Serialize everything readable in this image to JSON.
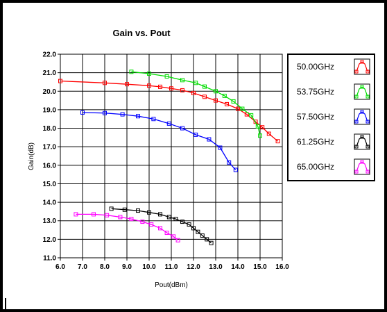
{
  "chart_data": {
    "type": "line",
    "title": "Gain vs. Pout",
    "xlabel": "Pout(dBm)",
    "ylabel": "Gain(dB)",
    "xlim": [
      6.0,
      16.0
    ],
    "ylim": [
      11.0,
      22.0
    ],
    "xticks": [
      "6.0",
      "7.0",
      "8.0",
      "9.0",
      "10.0",
      "11.0",
      "12.0",
      "13.0",
      "14.0",
      "15.0",
      "16.0"
    ],
    "yticks": [
      "11.0",
      "12.0",
      "13.0",
      "14.0",
      "15.0",
      "16.0",
      "17.0",
      "18.0",
      "19.0",
      "20.0",
      "21.0",
      "22.0"
    ],
    "grid": true,
    "legend_position": "right",
    "series": [
      {
        "name": "50.00GHz",
        "color": "#ff0000",
        "x": [
          6.0,
          8.0,
          9.0,
          10.0,
          10.5,
          11.0,
          11.5,
          12.0,
          12.5,
          13.0,
          13.5,
          14.0,
          14.4,
          14.8,
          15.1,
          15.4,
          15.8
        ],
        "y": [
          20.55,
          20.45,
          20.38,
          20.3,
          20.24,
          20.15,
          20.05,
          19.9,
          19.7,
          19.5,
          19.3,
          19.05,
          18.75,
          18.35,
          18.05,
          17.7,
          17.3
        ]
      },
      {
        "name": "53.75GHz",
        "color": "#00dd00",
        "x": [
          9.2,
          10.0,
          10.8,
          11.5,
          12.1,
          12.5,
          13.0,
          13.4,
          13.8,
          14.2,
          14.6,
          14.9,
          15.0
        ],
        "y": [
          21.05,
          20.95,
          20.8,
          20.6,
          20.45,
          20.25,
          20.0,
          19.75,
          19.45,
          19.05,
          18.7,
          18.1,
          17.6
        ]
      },
      {
        "name": "57.50GHz",
        "color": "#0000ff",
        "x": [
          7.0,
          8.0,
          8.8,
          9.5,
          10.2,
          10.9,
          11.5,
          12.1,
          12.7,
          13.2,
          13.6,
          13.9
        ],
        "y": [
          18.85,
          18.82,
          18.75,
          18.65,
          18.5,
          18.25,
          18.0,
          17.65,
          17.4,
          16.95,
          16.15,
          15.75
        ]
      },
      {
        "name": "61.25GHz",
        "color": "#000000",
        "x": [
          8.3,
          8.9,
          9.5,
          10.0,
          10.5,
          10.9,
          11.2,
          11.5,
          11.8,
          12.0,
          12.2,
          12.4,
          12.6,
          12.8
        ],
        "y": [
          13.65,
          13.6,
          13.55,
          13.45,
          13.35,
          13.2,
          13.1,
          12.95,
          12.8,
          12.6,
          12.4,
          12.2,
          12.0,
          11.8
        ]
      },
      {
        "name": "65.00GHz",
        "color": "#ff00ff",
        "x": [
          6.7,
          7.5,
          8.1,
          8.7,
          9.2,
          9.7,
          10.1,
          10.5,
          10.8,
          11.1,
          11.3
        ],
        "y": [
          13.35,
          13.35,
          13.3,
          13.2,
          13.1,
          12.95,
          12.8,
          12.6,
          12.35,
          12.15,
          11.95
        ]
      }
    ]
  }
}
